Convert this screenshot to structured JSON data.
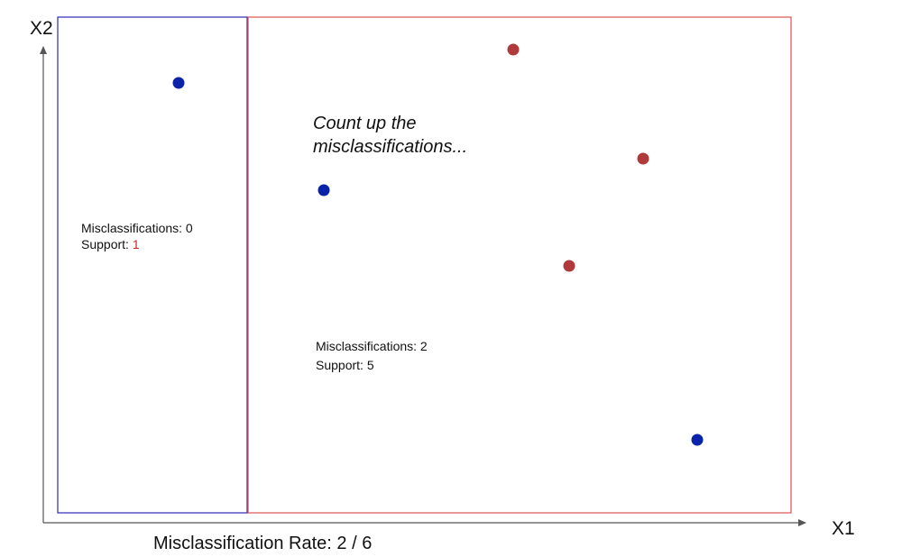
{
  "axes": {
    "x_label": "X1",
    "y_label": "X2"
  },
  "annotation": {
    "line1": "Count up the",
    "line2": "misclassifications..."
  },
  "regions": [
    {
      "name": "left-region",
      "border_color": "#2c2cb4",
      "misclassifications_text": "Misclassifications: 0",
      "support_label": "Support: ",
      "support_value": "1",
      "support_value_color": "#c62828"
    },
    {
      "name": "right-region",
      "border_color": "#d9534f",
      "misclassifications_text": "Misclassifications: 2",
      "support_label": "Support: 5",
      "support_value": "",
      "support_value_color": "#111111"
    }
  ],
  "points": [
    {
      "class": "blue"
    },
    {
      "class": "red"
    },
    {
      "class": "red"
    },
    {
      "class": "blue"
    },
    {
      "class": "red"
    },
    {
      "class": "blue"
    }
  ],
  "class_colors": {
    "blue": "#0b23a8",
    "red": "#b03a3a"
  },
  "footer": {
    "rate_text": "Misclassification Rate: 2 / 6"
  }
}
